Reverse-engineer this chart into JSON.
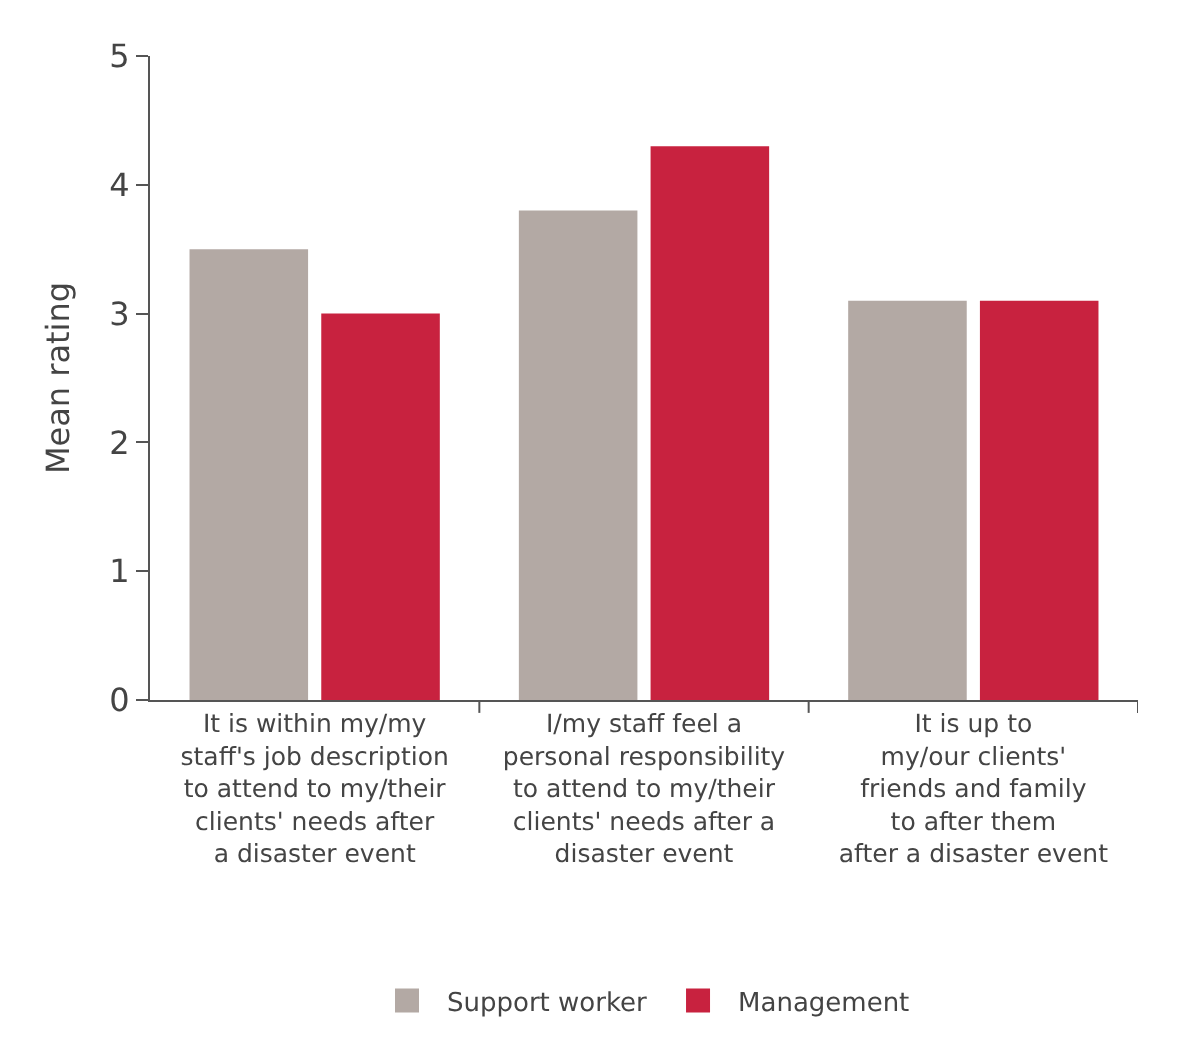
{
  "chart_data": {
    "type": "bar",
    "ylabel": "Mean rating",
    "categories": [
      "It is within my/my\nstaff's job description\nto attend to my/their\nclients' needs after\na disaster event",
      "I/my staff feel a\npersonal responsibility\nto attend to my/their\nclients' needs after a\ndisaster event",
      "It is up to\nmy/our clients'\nfriends and family\nto after them\nafter a disaster event"
    ],
    "series": [
      {
        "name": "Support worker",
        "color": "#b3a9a4",
        "values": [
          3.5,
          3.8,
          3.1
        ]
      },
      {
        "name": "Management",
        "color": "#c8223f",
        "values": [
          3.0,
          4.3,
          3.1
        ]
      }
    ],
    "ylim": [
      0,
      5
    ],
    "yticks": [
      0,
      1,
      2,
      3,
      4,
      5
    ],
    "legend": "bottom"
  }
}
